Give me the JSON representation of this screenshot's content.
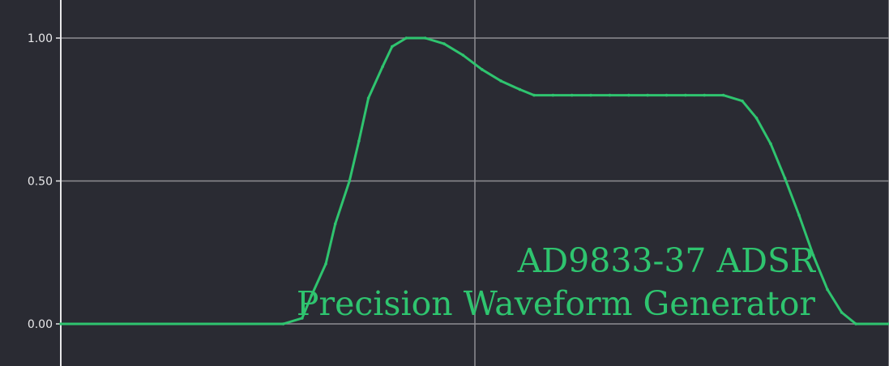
{
  "chart_data": {
    "type": "line",
    "title_lines": [
      "AD9833-37 ADSR",
      "Precision Waveform Generator"
    ],
    "xlabel": "",
    "ylabel": "",
    "ylim": [
      0,
      1
    ],
    "yticks": [
      "1.00",
      "0.50",
      "0.00"
    ],
    "grid": true,
    "series": [
      {
        "color": "#2fc46f",
        "points": [
          [
            0.0,
            0.0
          ],
          [
            0.47,
            0.0
          ],
          [
            0.51,
            0.02
          ],
          [
            0.53,
            0.1
          ],
          [
            0.56,
            0.21
          ],
          [
            0.58,
            0.35
          ],
          [
            0.61,
            0.5
          ],
          [
            0.63,
            0.64
          ],
          [
            0.65,
            0.79
          ],
          [
            0.68,
            0.9
          ],
          [
            0.7,
            0.97
          ],
          [
            0.73,
            1.0
          ],
          [
            0.77,
            1.0
          ],
          [
            0.81,
            0.98
          ],
          [
            0.85,
            0.94
          ],
          [
            0.89,
            0.89
          ],
          [
            0.93,
            0.85
          ],
          [
            0.97,
            0.82
          ],
          [
            1.0,
            0.8
          ],
          [
            1.04,
            0.8
          ],
          [
            1.08,
            0.8
          ],
          [
            1.12,
            0.8
          ],
          [
            1.16,
            0.8
          ],
          [
            1.2,
            0.8
          ],
          [
            1.24,
            0.8
          ],
          [
            1.28,
            0.8
          ],
          [
            1.32,
            0.8
          ],
          [
            1.36,
            0.8
          ],
          [
            1.4,
            0.8
          ],
          [
            1.44,
            0.78
          ],
          [
            1.47,
            0.72
          ],
          [
            1.5,
            0.63
          ],
          [
            1.53,
            0.51
          ],
          [
            1.56,
            0.38
          ],
          [
            1.59,
            0.24
          ],
          [
            1.62,
            0.12
          ],
          [
            1.65,
            0.04
          ],
          [
            1.68,
            0.0
          ],
          [
            1.75,
            0.0
          ]
        ]
      }
    ],
    "colors": {
      "background": "#2a2b33",
      "grid": "#8e8e93",
      "axis": "#e8e8ea",
      "line": "#2fc46f",
      "text": "#2fc46f"
    }
  }
}
